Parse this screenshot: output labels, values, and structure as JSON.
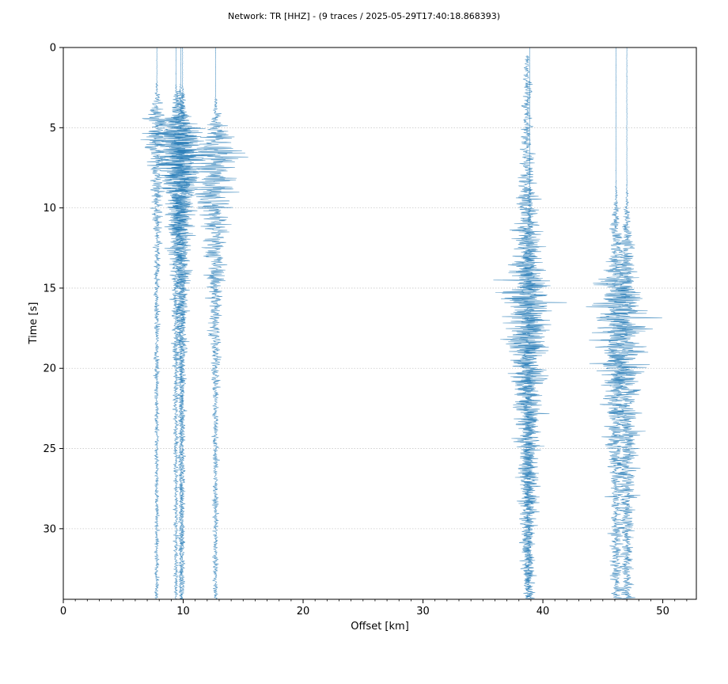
{
  "chart_data": {
    "type": "seismic-record-section",
    "title": "Network: TR [HHZ] - (9 traces / 2025-05-29T17:40:18.868393)",
    "xlabel": "Offset [km]",
    "ylabel": "Time [s]",
    "xlim": [
      0,
      52.8
    ],
    "ylim": [
      34.4,
      0
    ],
    "y_inverted": true,
    "x_ticks": [
      0,
      10,
      20,
      30,
      40,
      50
    ],
    "x_tick_labels": [
      "0",
      "10",
      "20",
      "30",
      "40",
      "50"
    ],
    "x_minor_tick_step": 1,
    "y_ticks": [
      0,
      5,
      10,
      15,
      20,
      25,
      30
    ],
    "y_tick_labels": [
      "0",
      "5",
      "10",
      "15",
      "20",
      "25",
      "30"
    ],
    "grid": "horizontal-dotted",
    "legend": "none",
    "colors": {
      "trace": "#1f77b4",
      "grid": "#b0b0b0",
      "axes": "#000000"
    },
    "traces": [
      {
        "offset_km": 7.8,
        "start_s": 0.0,
        "onset_s": 2.0,
        "peak_s": 4.5,
        "amp_pre": 0.02,
        "amp_peak": 1.2,
        "decay_s": 4.0
      },
      {
        "offset_km": 9.4,
        "start_s": 0.0,
        "onset_s": 2.2,
        "peak_s": 5.5,
        "amp_pre": 0.02,
        "amp_peak": 2.6,
        "decay_s": 4.5
      },
      {
        "offset_km": 9.8,
        "start_s": 0.0,
        "onset_s": 2.2,
        "peak_s": 5.5,
        "amp_pre": 0.02,
        "amp_peak": 2.4,
        "decay_s": 5.0
      },
      {
        "offset_km": 9.95,
        "start_s": 0.0,
        "onset_s": 2.3,
        "peak_s": 6.0,
        "amp_pre": 0.02,
        "amp_peak": 1.8,
        "decay_s": 6.0
      },
      {
        "offset_km": 12.7,
        "start_s": 0.0,
        "onset_s": 3.0,
        "peak_s": 6.5,
        "amp_pre": 0.02,
        "amp_peak": 2.6,
        "decay_s": 5.5
      },
      {
        "offset_km": 38.7,
        "start_s": 0.5,
        "onset_s": 0.7,
        "peak_s": 15.5,
        "amp_pre": 0.25,
        "amp_peak": 2.2,
        "decay_s": 9.0
      },
      {
        "offset_km": 38.9,
        "start_s": 0.0,
        "onset_s": 7.5,
        "peak_s": 16.0,
        "amp_pre": 0.02,
        "amp_peak": 1.8,
        "decay_s": 10.0
      },
      {
        "offset_km": 46.1,
        "start_s": 0.0,
        "onset_s": 8.3,
        "peak_s": 15.5,
        "amp_pre": 0.02,
        "amp_peak": 2.0,
        "decay_s": 9.0
      },
      {
        "offset_km": 47.0,
        "start_s": 0.0,
        "onset_s": 8.3,
        "peak_s": 16.0,
        "amp_pre": 0.02,
        "amp_peak": 2.0,
        "decay_s": 10.0
      }
    ]
  }
}
